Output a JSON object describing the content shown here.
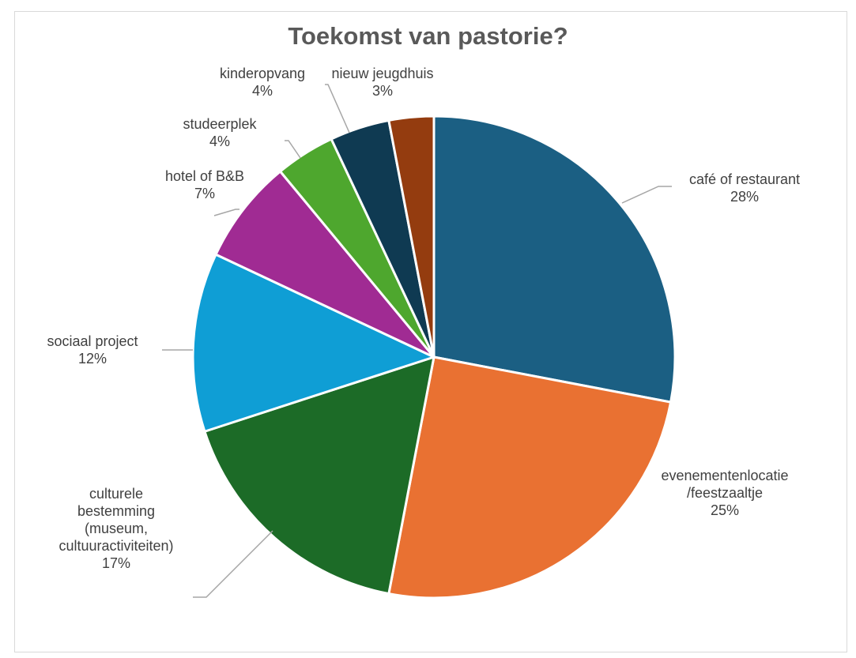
{
  "chart_data": {
    "type": "pie",
    "title": "Toekomst van pastorie?",
    "slices": [
      {
        "label": [
          "café of restaurant"
        ],
        "value": 28,
        "pct_label": "28%",
        "color": "#1b5f83"
      },
      {
        "label": [
          "evenementenlocatie",
          "/feestzaaltje"
        ],
        "value": 25,
        "pct_label": "25%",
        "color": "#e97132"
      },
      {
        "label": [
          "culturele",
          "bestemming",
          "(museum,",
          "cultuuractiviteiten)"
        ],
        "value": 17,
        "pct_label": "17%",
        "color": "#1c6b27"
      },
      {
        "label": [
          "sociaal project"
        ],
        "value": 12,
        "pct_label": "12%",
        "color": "#0f9ed5"
      },
      {
        "label": [
          "hotel of B&B"
        ],
        "value": 7,
        "pct_label": "7%",
        "color": "#a02b93"
      },
      {
        "label": [
          "studeerplek"
        ],
        "value": 4,
        "pct_label": "4%",
        "color": "#4ea72e"
      },
      {
        "label": [
          "kinderopvang"
        ],
        "value": 4,
        "pct_label": "4%",
        "color": "#0f3a52"
      },
      {
        "label": [
          "nieuw jeugdhuis"
        ],
        "value": 3,
        "pct_label": "3%",
        "color": "#943c0f"
      }
    ],
    "legend": "none",
    "data_labels": "outside with leader lines"
  }
}
